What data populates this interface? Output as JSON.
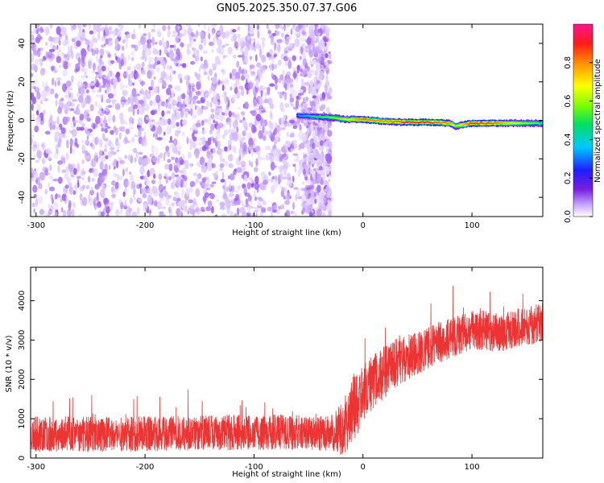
{
  "figure": {
    "title": "GN05.2025.350.07.37.G06"
  },
  "chart_data": [
    {
      "type": "heatmap",
      "xlabel": "Height of straight line (km)",
      "ylabel": "Frequency (Hz)",
      "xlim": [
        -305,
        165
      ],
      "ylim": [
        -50,
        50
      ],
      "x_ticks": [
        -300,
        -200,
        -100,
        0,
        100
      ],
      "y_ticks": [
        40,
        20,
        0,
        -20,
        -40
      ],
      "grid": false,
      "noise_region": {
        "x_range": [
          -305,
          -30
        ],
        "description": "scattered low-amplitude speckle (purple)"
      },
      "signal_track": {
        "points": [
          {
            "x": -60,
            "y": 2.5,
            "amplitude": 0.35
          },
          {
            "x": -45,
            "y": 2.0,
            "amplitude": 0.45
          },
          {
            "x": -30,
            "y": 1.5,
            "amplitude": 0.55
          },
          {
            "x": -15,
            "y": 0.5,
            "amplitude": 0.65
          },
          {
            "x": 0,
            "y": 0.5,
            "amplitude": 0.8
          },
          {
            "x": 20,
            "y": -0.5,
            "amplitude": 0.75
          },
          {
            "x": 40,
            "y": -1.0,
            "amplitude": 0.85
          },
          {
            "x": 60,
            "y": -1.0,
            "amplitude": 0.85
          },
          {
            "x": 80,
            "y": -1.5,
            "amplitude": 0.75
          },
          {
            "x": 85,
            "y": -3.0,
            "amplitude": 0.6
          },
          {
            "x": 100,
            "y": -1.5,
            "amplitude": 0.85
          },
          {
            "x": 120,
            "y": -1.5,
            "amplitude": 0.8
          },
          {
            "x": 140,
            "y": -1.5,
            "amplitude": 0.65
          },
          {
            "x": 165,
            "y": -1.5,
            "amplitude": 0.5
          }
        ]
      },
      "colorbar": {
        "label": "Normalized spectral amplitude",
        "range": [
          0,
          1
        ],
        "ticks": [
          0.0,
          0.2,
          0.4,
          0.6,
          0.8
        ],
        "colors": [
          "#ffffff",
          "#c9a8ff",
          "#7a1fe0",
          "#1e1eff",
          "#00c8ff",
          "#00e060",
          "#80ff00",
          "#ffff00",
          "#ff8c00",
          "#ff1a1a",
          "#ff1493"
        ]
      }
    },
    {
      "type": "line",
      "xlabel": "Height of straight line (km)",
      "ylabel": "SNR (10 * v/v)",
      "xlim": [
        -305,
        165
      ],
      "ylim": [
        0,
        4850
      ],
      "x_ticks": [
        -300,
        -200,
        -100,
        0,
        100
      ],
      "y_ticks": [
        0,
        1000,
        2000,
        3000,
        4000
      ],
      "grid": false,
      "series": [
        {
          "color": "#ee3333",
          "trend": [
            [
              -305,
              600
            ],
            [
              -280,
              620
            ],
            [
              -250,
              600
            ],
            [
              -200,
              620
            ],
            [
              -150,
              640
            ],
            [
              -100,
              660
            ],
            [
              -50,
              650
            ],
            [
              -30,
              620
            ],
            [
              -20,
              700
            ],
            [
              -10,
              1200
            ],
            [
              0,
              1650
            ],
            [
              10,
              1950
            ],
            [
              20,
              2200
            ],
            [
              30,
              2400
            ],
            [
              40,
              2550
            ],
            [
              50,
              2650
            ],
            [
              60,
              2800
            ],
            [
              70,
              2950
            ],
            [
              80,
              3050
            ],
            [
              90,
              3150
            ],
            [
              100,
              3250
            ],
            [
              110,
              3250
            ],
            [
              120,
              3200
            ],
            [
              130,
              3200
            ],
            [
              140,
              3300
            ],
            [
              150,
              3350
            ],
            [
              165,
              3450
            ]
          ],
          "spread": [
            [
              -305,
              450
            ],
            [
              -30,
              450
            ],
            [
              -10,
              900
            ],
            [
              0,
              750
            ],
            [
              50,
              550
            ],
            [
              100,
              500
            ],
            [
              165,
              500
            ]
          ]
        }
      ]
    }
  ]
}
